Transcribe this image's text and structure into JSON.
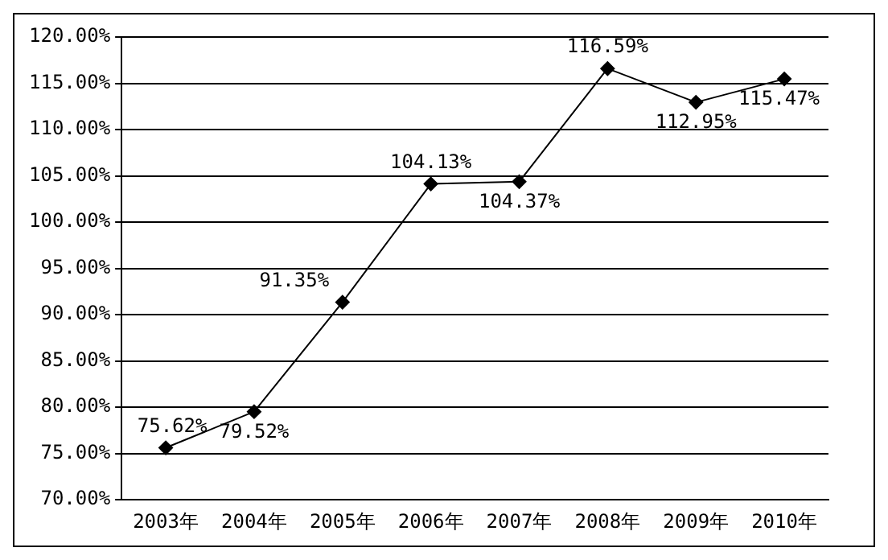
{
  "chart_data": {
    "type": "line",
    "categories": [
      "2003年",
      "2004年",
      "2005年",
      "2006年",
      "2007年",
      "2008年",
      "2009年",
      "2010年"
    ],
    "series": [
      {
        "color": "#000000",
        "values": [
          75.62,
          79.52,
          91.35,
          104.13,
          104.37,
          116.59,
          112.95,
          115.47
        ],
        "value_labels": [
          "75.62%",
          "79.52%",
          "91.35%",
          "104.13%",
          "104.37%",
          "116.59%",
          "112.95%",
          "115.47%"
        ]
      }
    ],
    "ylim": [
      70,
      120
    ],
    "yticks": [
      {
        "value": 70,
        "label": "70.00%"
      },
      {
        "value": 75,
        "label": "75.00%"
      },
      {
        "value": 80,
        "label": "80.00%"
      },
      {
        "value": 85,
        "label": "85.00%"
      },
      {
        "value": 90,
        "label": "90.00%"
      },
      {
        "value": 95,
        "label": "95.00%"
      },
      {
        "value": 100,
        "label": "100.00%"
      },
      {
        "value": 105,
        "label": "105.00%"
      },
      {
        "value": 110,
        "label": "110.00%"
      },
      {
        "value": 115,
        "label": "115.00%"
      },
      {
        "value": 120,
        "label": "120.00%"
      }
    ],
    "grid": "y",
    "legend": false,
    "marker": "diamond",
    "line_style": "solid"
  }
}
